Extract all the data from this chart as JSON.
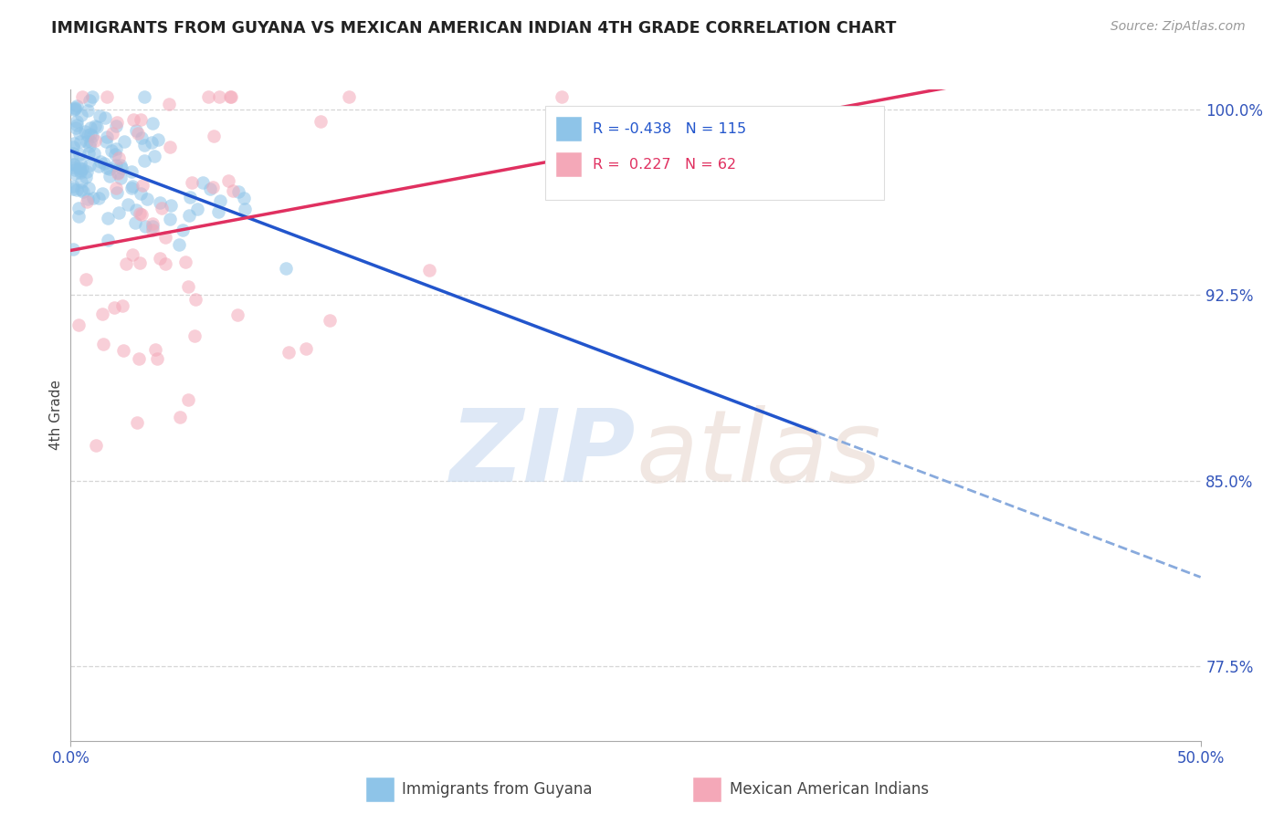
{
  "title": "IMMIGRANTS FROM GUYANA VS MEXICAN AMERICAN INDIAN 4TH GRADE CORRELATION CHART",
  "source": "Source: ZipAtlas.com",
  "ylabel": "4th Grade",
  "xlim": [
    0.0,
    0.5
  ],
  "ylim": [
    0.745,
    1.008
  ],
  "yticks": [
    0.775,
    0.85,
    0.925,
    1.0
  ],
  "ytick_labels": [
    "77.5%",
    "85.0%",
    "92.5%",
    "100.0%"
  ],
  "xticks": [
    0.0,
    0.5
  ],
  "xtick_labels": [
    "0.0%",
    "50.0%"
  ],
  "blue_R": -0.438,
  "blue_N": 115,
  "pink_R": 0.227,
  "pink_N": 62,
  "blue_color": "#8ec4e8",
  "pink_color": "#f4a8b8",
  "blue_line_color": "#2255cc",
  "pink_line_color": "#e03060",
  "blue_dash_color": "#88aadd",
  "legend_label_blue": "Immigrants from Guyana",
  "legend_label_pink": "Mexican American Indians",
  "background_color": "#ffffff",
  "grid_color": "#cccccc",
  "axis_color": "#aaaaaa",
  "tick_color": "#3355bb",
  "title_color": "#222222",
  "source_color": "#999999",
  "ylabel_color": "#444444",
  "blue_seed": 42,
  "pink_seed": 123,
  "watermark_zip_color": "#c8daf0",
  "watermark_atlas_color": "#e8d8d0",
  "watermark_alpha": 0.6
}
